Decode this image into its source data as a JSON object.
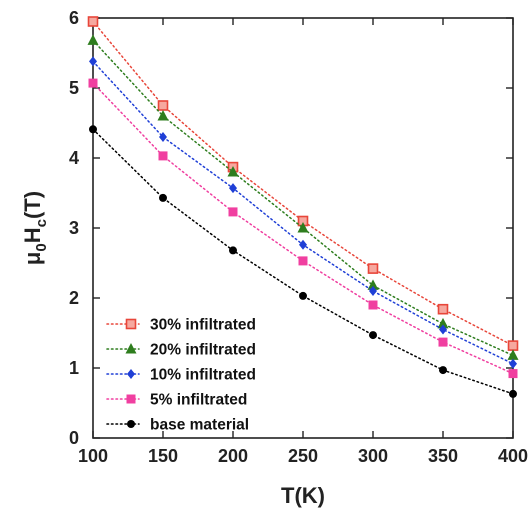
{
  "chart_data": {
    "type": "line",
    "xlabel": "T(K)",
    "ylabel": {
      "base": "μ",
      "sub1": "0",
      "mid": "H",
      "sub2": "c",
      "end": "(T)"
    },
    "xlim": [
      100,
      400
    ],
    "ylim": [
      0,
      6
    ],
    "x_ticks": [
      100,
      150,
      200,
      250,
      300,
      350,
      400
    ],
    "y_ticks": [
      0,
      1,
      2,
      3,
      4,
      5,
      6
    ],
    "grid": false,
    "legend_position": "bottom-left",
    "x": [
      100,
      150,
      200,
      250,
      300,
      350,
      400
    ],
    "series": [
      {
        "name": "30% infiltrated",
        "color": "#e8463a",
        "marker": "square-outline",
        "values": [
          5.95,
          4.75,
          3.87,
          3.1,
          2.42,
          1.84,
          1.32
        ]
      },
      {
        "name": "20% infiltrated",
        "color": "#2e7d1e",
        "marker": "triangle",
        "values": [
          5.68,
          4.6,
          3.8,
          3.0,
          2.18,
          1.63,
          1.18
        ]
      },
      {
        "name": "10% infiltrated",
        "color": "#1f3fd6",
        "marker": "diamond",
        "values": [
          5.38,
          4.3,
          3.57,
          2.76,
          2.1,
          1.55,
          1.06
        ]
      },
      {
        "name": "5% infiltrated",
        "color": "#f03fa0",
        "marker": "square",
        "values": [
          5.07,
          4.03,
          3.23,
          2.53,
          1.9,
          1.37,
          0.92
        ]
      },
      {
        "name": "base material",
        "color": "#000000",
        "marker": "circle",
        "values": [
          4.41,
          3.43,
          2.68,
          2.03,
          1.47,
          0.97,
          0.63
        ]
      }
    ]
  }
}
